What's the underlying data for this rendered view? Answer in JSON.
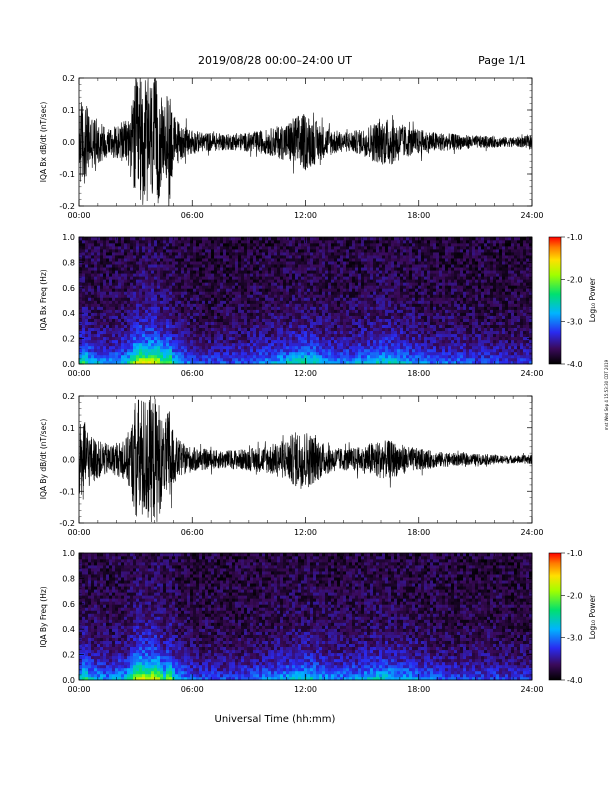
{
  "header": {
    "title": "2019/08/28  00:00–24:00 UT",
    "page": "Page 1/1"
  },
  "footer": {
    "xlabel": "Universal Time (hh:mm)"
  },
  "side_stamp": "mst Wed Sep 4 15:53:30 CDT 2019",
  "colorbar": {
    "label": "Log₁₀ Power",
    "range": [
      -4.0,
      -1.0
    ],
    "ticks": [
      "-1.0",
      "-2.0",
      "-3.0",
      "-4.0"
    ],
    "tick_values": [
      -1.0,
      -2.0,
      -3.0,
      -4.0
    ]
  },
  "colors": {
    "trace": "#000000",
    "spectrogram_background": "#1a0a3c"
  },
  "chart_data": [
    {
      "type": "line",
      "name": "bx-waveform",
      "ylabel": "IQA Bx dB/dt (nT/sec)",
      "xlim": [
        0,
        24
      ],
      "ylim": [
        -0.2,
        0.2
      ],
      "xticks": [
        "00:00",
        "06:00",
        "12:00",
        "18:00",
        "24:00"
      ],
      "xtick_values": [
        0,
        6,
        12,
        18,
        24
      ],
      "yticks": [
        "0.2",
        "0.1",
        "0.0",
        "-0.1",
        "-0.2"
      ],
      "ytick_values": [
        0.2,
        0.1,
        0.0,
        -0.1,
        -0.2
      ],
      "x": [
        0,
        0.3,
        0.6,
        1,
        1.5,
        2,
        2.5,
        2.8,
        3,
        3.3,
        3.6,
        3.9,
        4.2,
        4.5,
        4.8,
        5,
        5.5,
        6,
        6.5,
        7,
        8,
        9,
        10,
        11,
        11.5,
        12,
        12.5,
        13,
        13.5,
        14,
        15,
        15.5,
        16,
        16.5,
        17,
        17.5,
        18,
        19,
        20,
        21,
        22,
        23,
        24
      ],
      "amplitude": [
        0.14,
        0.13,
        0.09,
        0.07,
        0.05,
        0.05,
        0.07,
        0.12,
        0.2,
        0.2,
        0.2,
        0.2,
        0.2,
        0.1,
        0.19,
        0.09,
        0.05,
        0.04,
        0.03,
        0.03,
        0.025,
        0.03,
        0.04,
        0.06,
        0.085,
        0.09,
        0.07,
        0.05,
        0.04,
        0.03,
        0.04,
        0.06,
        0.07,
        0.075,
        0.06,
        0.045,
        0.04,
        0.03,
        0.025,
        0.02,
        0.018,
        0.015,
        0.02
      ]
    },
    {
      "type": "heatmap",
      "name": "bx-spectrogram",
      "ylabel": "IQA Bx Freq (Hz)",
      "xlim": [
        0,
        24
      ],
      "ylim": [
        0,
        1
      ],
      "xticks": [
        "00:00",
        "06:00",
        "12:00",
        "18:00",
        "24:00"
      ],
      "xtick_values": [
        0,
        6,
        12,
        18,
        24
      ],
      "yticks": [
        "1.0",
        "0.8",
        "0.6",
        "0.4",
        "0.2",
        "0.0"
      ],
      "ytick_values": [
        1.0,
        0.8,
        0.6,
        0.4,
        0.2,
        0.0
      ],
      "x": [
        0,
        0.3,
        0.6,
        1,
        1.5,
        2,
        2.5,
        2.8,
        3,
        3.3,
        3.6,
        3.9,
        4.2,
        4.5,
        4.8,
        5,
        5.5,
        6,
        6.5,
        7,
        8,
        9,
        10,
        11,
        11.5,
        12,
        12.5,
        13,
        13.5,
        14,
        15,
        15.5,
        16,
        16.5,
        17,
        17.5,
        18,
        19,
        20,
        21,
        22,
        23,
        24
      ],
      "log10_power_low_freq": [
        -2.8,
        -2.6,
        -2.9,
        -3.0,
        -3.1,
        -3.0,
        -2.9,
        -2.6,
        -2.2,
        -2.0,
        -2.2,
        -2.0,
        -2.1,
        -2.7,
        -2.2,
        -2.8,
        -3.1,
        -3.2,
        -3.3,
        -3.3,
        -3.3,
        -3.2,
        -3.1,
        -2.9,
        -2.8,
        -2.7,
        -2.8,
        -3.0,
        -3.1,
        -3.1,
        -3.0,
        -2.9,
        -2.8,
        -2.8,
        -2.9,
        -3.0,
        -3.1,
        -3.2,
        -3.2,
        -3.3,
        -3.3,
        -3.4,
        -3.3
      ],
      "log10_power_background": -3.8,
      "zlim": [
        -4.0,
        -1.0
      ]
    },
    {
      "type": "line",
      "name": "by-waveform",
      "ylabel": "IQA By dB/dt (nT/sec)",
      "xlim": [
        0,
        24
      ],
      "ylim": [
        -0.2,
        0.2
      ],
      "xticks": [
        "00:00",
        "06:00",
        "12:00",
        "18:00",
        "24:00"
      ],
      "xtick_values": [
        0,
        6,
        12,
        18,
        24
      ],
      "yticks": [
        "0.2",
        "0.1",
        "0.0",
        "-0.1",
        "-0.2"
      ],
      "ytick_values": [
        0.2,
        0.1,
        0.0,
        -0.1,
        -0.2
      ],
      "x": [
        0,
        0.3,
        0.6,
        1,
        1.5,
        2,
        2.5,
        2.8,
        3,
        3.3,
        3.6,
        3.9,
        4.2,
        4.5,
        4.8,
        5,
        5.5,
        6,
        6.5,
        7,
        8,
        9,
        10,
        11,
        11.5,
        12,
        12.5,
        13,
        13.5,
        14,
        15,
        15.5,
        16,
        16.5,
        17,
        17.5,
        18,
        19,
        20,
        21,
        22,
        23,
        24
      ],
      "amplitude": [
        0.12,
        0.12,
        0.08,
        0.06,
        0.05,
        0.05,
        0.07,
        0.12,
        0.2,
        0.2,
        0.2,
        0.2,
        0.2,
        0.1,
        0.18,
        0.08,
        0.05,
        0.04,
        0.035,
        0.03,
        0.03,
        0.035,
        0.045,
        0.065,
        0.09,
        0.095,
        0.075,
        0.05,
        0.04,
        0.035,
        0.04,
        0.055,
        0.06,
        0.06,
        0.05,
        0.04,
        0.035,
        0.025,
        0.02,
        0.018,
        0.015,
        0.012,
        0.015
      ]
    },
    {
      "type": "heatmap",
      "name": "by-spectrogram",
      "ylabel": "IQA By Freq (Hz)",
      "xlim": [
        0,
        24
      ],
      "ylim": [
        0,
        1
      ],
      "xticks": [
        "00:00",
        "06:00",
        "12:00",
        "18:00",
        "24:00"
      ],
      "xtick_values": [
        0,
        6,
        12,
        18,
        24
      ],
      "yticks": [
        "1.0",
        "0.8",
        "0.6",
        "0.4",
        "0.2",
        "0.0"
      ],
      "ytick_values": [
        1.0,
        0.8,
        0.6,
        0.4,
        0.2,
        0.0
      ],
      "x": [
        0,
        0.3,
        0.6,
        1,
        1.5,
        2,
        2.5,
        2.8,
        3,
        3.3,
        3.6,
        3.9,
        4.2,
        4.5,
        4.8,
        5,
        5.5,
        6,
        6.5,
        7,
        8,
        9,
        10,
        11,
        11.5,
        12,
        12.5,
        13,
        13.5,
        14,
        15,
        15.5,
        16,
        16.5,
        17,
        17.5,
        18,
        19,
        20,
        21,
        22,
        23,
        24
      ],
      "log10_power_low_freq": [
        -2.9,
        -2.6,
        -2.9,
        -3.0,
        -3.1,
        -3.0,
        -2.9,
        -2.6,
        -2.2,
        -2.0,
        -2.2,
        -2.0,
        -2.1,
        -2.7,
        -2.2,
        -2.8,
        -3.1,
        -3.2,
        -3.3,
        -3.3,
        -3.3,
        -3.2,
        -3.1,
        -3.0,
        -2.9,
        -2.8,
        -2.9,
        -3.0,
        -3.1,
        -3.1,
        -3.0,
        -2.9,
        -2.8,
        -2.9,
        -3.0,
        -3.0,
        -3.1,
        -3.2,
        -3.3,
        -3.3,
        -3.3,
        -3.4,
        -3.3
      ],
      "log10_power_background": -3.8,
      "zlim": [
        -4.0,
        -1.0
      ]
    }
  ]
}
